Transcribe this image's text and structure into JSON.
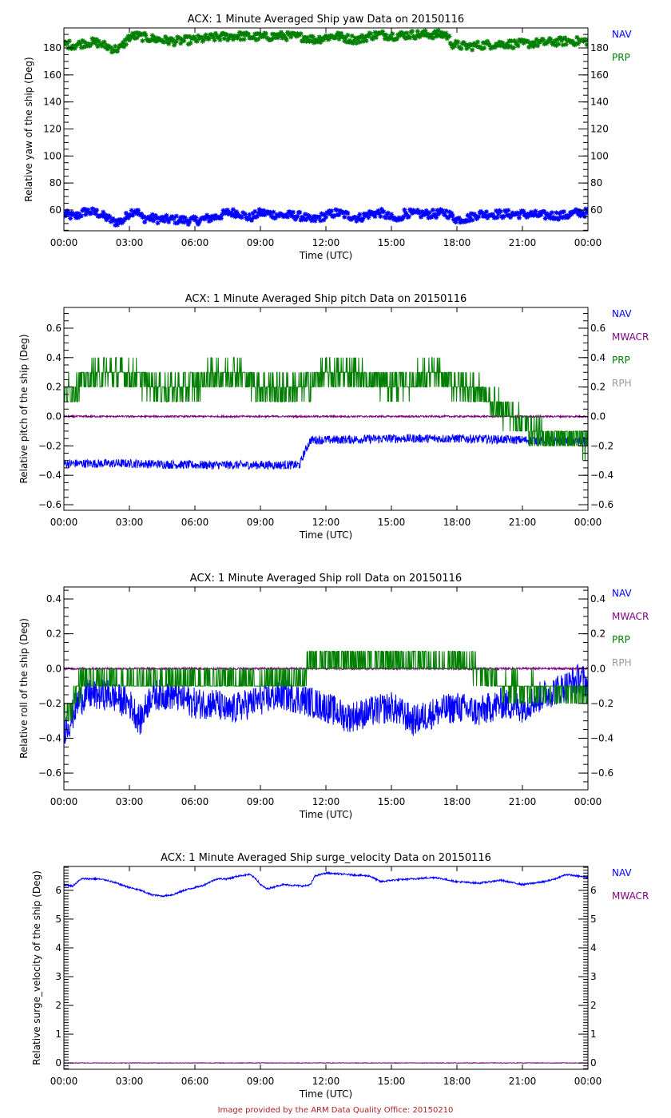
{
  "footer": "Image provided by the ARM Data Quality Office: 20150210",
  "colors": {
    "NAV": "#0000ff",
    "MWACR": "#7f007f",
    "PRP": "#007f00",
    "RPH": "#9a9a9a",
    "axis": "#000000",
    "footer": "#b22222"
  },
  "chart_data": [
    {
      "type": "line",
      "title": "ACX: 1 Minute Averaged Ship yaw Data on 20150116",
      "xlabel": "Time (UTC)",
      "ylabel": "Relative yaw of the ship (Deg)",
      "xlim": [
        0,
        24
      ],
      "ylim": [
        44.6,
        194.8
      ],
      "x_ticks": [
        0,
        3,
        6,
        9,
        12,
        15,
        18,
        21,
        24
      ],
      "x_tick_labels": [
        "00:00",
        "03:00",
        "06:00",
        "09:00",
        "12:00",
        "15:00",
        "18:00",
        "21:00",
        "00:00"
      ],
      "y_ticks": [
        60,
        80,
        100,
        120,
        140,
        160,
        180
      ],
      "y_tick_labels": [
        "60",
        "80",
        "100",
        "120",
        "140",
        "160",
        "180"
      ],
      "y_minor_step": 5,
      "legend": [
        "NAV",
        "PRP"
      ],
      "legend_placement": "right",
      "marker": "asterisk",
      "noise": 3.0,
      "series": [
        {
          "name": "NAV",
          "x": [
            0,
            0.5,
            1,
            1.5,
            2,
            2.3,
            2.7,
            3.0,
            3.3,
            3.6,
            4,
            4.4,
            5,
            6,
            7,
            7.5,
            8,
            8.5,
            9,
            9.5,
            10,
            10.5,
            11,
            11.3,
            12,
            12.5,
            13,
            13.5,
            14,
            14.5,
            15,
            15.3,
            15.6,
            16,
            16.5,
            17,
            17.5,
            18,
            18.5,
            19,
            20,
            21,
            22,
            23,
            23.5,
            24
          ],
          "y": [
            57,
            55,
            59,
            58,
            54,
            51,
            52,
            58,
            60,
            54,
            54,
            53,
            53,
            52,
            55,
            58,
            58,
            54,
            58,
            57,
            56,
            56,
            55,
            52,
            56,
            58,
            56,
            54,
            57,
            58,
            54,
            52,
            58,
            57,
            57,
            57,
            58,
            53,
            54,
            57,
            57,
            57,
            56,
            56,
            58,
            58
          ]
        },
        {
          "name": "PRP",
          "x": [
            0,
            0.5,
            1,
            1.5,
            2,
            2.3,
            2.6,
            3.0,
            3.3,
            4,
            4.5,
            5,
            6,
            7,
            8,
            9,
            10,
            11,
            11.5,
            12,
            12.5,
            13,
            13.5,
            14,
            14.5,
            15,
            16,
            17,
            17.5,
            17.8,
            18,
            18.5,
            19,
            20,
            21,
            22,
            23,
            23.5,
            24
          ],
          "y": [
            183,
            182,
            184,
            184,
            181,
            179,
            180,
            188,
            189,
            187,
            186,
            185,
            186,
            188,
            189,
            188,
            189,
            188,
            186,
            188,
            189,
            187,
            186,
            189,
            190,
            189,
            190,
            190,
            190,
            183,
            182,
            181,
            182,
            183,
            183,
            184,
            185,
            185,
            185
          ]
        }
      ]
    },
    {
      "type": "line",
      "title": "ACX: 1 Minute Averaged Ship pitch Data on 20150116",
      "xlabel": "Time (UTC)",
      "ylabel": "Relative pitch of the ship (Deg)",
      "xlim": [
        0,
        24
      ],
      "ylim": [
        -0.638,
        0.741
      ],
      "x_ticks": [
        0,
        3,
        6,
        9,
        12,
        15,
        18,
        21,
        24
      ],
      "x_tick_labels": [
        "00:00",
        "03:00",
        "06:00",
        "09:00",
        "12:00",
        "15:00",
        "18:00",
        "21:00",
        "00:00"
      ],
      "y_ticks": [
        -0.6,
        -0.4,
        -0.2,
        0.0,
        0.2,
        0.4,
        0.6
      ],
      "y_tick_labels": [
        "-0.6",
        "-0.4",
        "-0.2",
        "0.0",
        "0.2",
        "0.4",
        "0.6"
      ],
      "y_minor_step": 0.05,
      "legend": [
        "NAV",
        "MWACR",
        "PRP",
        "RPH"
      ],
      "legend_placement": "right",
      "marker": "line",
      "series": [
        {
          "name": "NAV",
          "x": [
            0,
            3,
            6,
            9,
            10.8,
            11.0,
            11.3,
            12,
            15,
            18,
            21,
            24
          ],
          "y": [
            -0.32,
            -0.32,
            -0.33,
            -0.33,
            -0.33,
            -0.25,
            -0.16,
            -0.16,
            -0.15,
            -0.15,
            -0.16,
            -0.17
          ],
          "noise": 0.03
        },
        {
          "name": "MWACR",
          "x": [
            0,
            24
          ],
          "y": [
            0.0,
            0.0
          ],
          "noise": 0.006
        },
        {
          "name": "PRP",
          "x": [
            0,
            1,
            2,
            3,
            4,
            5,
            6,
            7,
            8,
            9,
            10,
            11,
            12,
            13,
            14,
            15,
            16,
            17,
            18,
            19,
            19.5,
            20,
            21,
            22,
            23,
            24
          ],
          "y": [
            0.15,
            0.25,
            0.3,
            0.28,
            0.22,
            0.18,
            0.22,
            0.28,
            0.3,
            0.2,
            0.18,
            0.2,
            0.28,
            0.3,
            0.25,
            0.22,
            0.25,
            0.28,
            0.22,
            0.18,
            0.1,
            0.05,
            -0.05,
            -0.15,
            -0.15,
            -0.18
          ],
          "noise": 0.1
        },
        {
          "name": "RPH",
          "x": [],
          "y": []
        }
      ]
    },
    {
      "type": "line",
      "title": "ACX: 1 Minute Averaged Ship roll Data on 20150116",
      "xlabel": "Time (UTC)",
      "ylabel": "Relative roll of the ship (Deg)",
      "xlim": [
        0,
        24
      ],
      "ylim": [
        -0.696,
        0.469
      ],
      "x_ticks": [
        0,
        3,
        6,
        9,
        12,
        15,
        18,
        21,
        24
      ],
      "x_tick_labels": [
        "00:00",
        "03:00",
        "06:00",
        "09:00",
        "12:00",
        "15:00",
        "18:00",
        "21:00",
        "00:00"
      ],
      "y_ticks": [
        -0.6,
        -0.4,
        -0.2,
        0.0,
        0.2,
        0.4
      ],
      "y_tick_labels": [
        "-0.6",
        "-0.4",
        "-0.2",
        "0.0",
        "0.2",
        "0.4"
      ],
      "y_minor_step": 0.05,
      "legend": [
        "NAV",
        "MWACR",
        "PRP",
        "RPH"
      ],
      "legend_placement": "right",
      "marker": "line",
      "series": [
        {
          "name": "NAV",
          "x": [
            0,
            0.3,
            0.6,
            1,
            2,
            3,
            3.5,
            4,
            5,
            6,
            7,
            7.5,
            8,
            9,
            10,
            11,
            12,
            13,
            14,
            15,
            16,
            17,
            18,
            19,
            20,
            21,
            22,
            23,
            23.7,
            24
          ],
          "y": [
            -0.35,
            -0.3,
            -0.2,
            -0.15,
            -0.15,
            -0.2,
            -0.3,
            -0.15,
            -0.15,
            -0.2,
            -0.2,
            -0.25,
            -0.22,
            -0.18,
            -0.15,
            -0.18,
            -0.22,
            -0.28,
            -0.25,
            -0.22,
            -0.3,
            -0.25,
            -0.22,
            -0.25,
            -0.2,
            -0.22,
            -0.15,
            -0.1,
            -0.05,
            -0.1
          ],
          "noise": 0.09
        },
        {
          "name": "MWACR",
          "x": [
            0,
            24
          ],
          "y": [
            0.0,
            0.0
          ],
          "noise": 0.006
        },
        {
          "name": "PRP",
          "x": [
            0,
            0.3,
            0.6,
            1,
            3,
            5,
            7,
            9,
            11,
            11.2,
            12,
            14,
            16,
            17,
            18,
            19,
            19.5,
            20,
            22,
            24
          ],
          "y": [
            -0.25,
            -0.25,
            -0.1,
            -0.08,
            -0.08,
            -0.07,
            -0.07,
            -0.08,
            -0.08,
            0.03,
            0.04,
            0.04,
            0.04,
            0.03,
            0.02,
            0.0,
            -0.06,
            -0.1,
            -0.12,
            -0.12
          ],
          "noise": 0.07
        },
        {
          "name": "RPH",
          "x": [],
          "y": []
        }
      ]
    },
    {
      "type": "line",
      "title": "ACX: 1 Minute Averaged Ship surge_velocity Data on 20150116",
      "xlabel": "Time (UTC)",
      "ylabel": "Relative surge_velocity of the ship (Deg)",
      "xlim": [
        0,
        24
      ],
      "ylim": [
        -0.22,
        6.83
      ],
      "x_ticks": [
        0,
        3,
        6,
        9,
        12,
        15,
        18,
        21,
        24
      ],
      "x_tick_labels": [
        "00:00",
        "03:00",
        "06:00",
        "09:00",
        "12:00",
        "15:00",
        "18:00",
        "21:00",
        "00:00"
      ],
      "y_ticks": [
        0,
        1,
        2,
        3,
        4,
        5,
        6
      ],
      "y_tick_labels": [
        "0",
        "1",
        "2",
        "3",
        "4",
        "5",
        "6"
      ],
      "y_minor_step": 0.1,
      "legend": [
        "NAV",
        "MWACR"
      ],
      "legend_placement": "right",
      "marker": "line",
      "series": [
        {
          "name": "NAV",
          "x": [
            0,
            0.4,
            0.8,
            1.5,
            2,
            3,
            3.5,
            4,
            4.5,
            5,
            5.5,
            6,
            6.3,
            7,
            7.5,
            8,
            8.5,
            8.8,
            9,
            9.3,
            10,
            11,
            11.3,
            11.5,
            12,
            13,
            14,
            14.5,
            15,
            16,
            17,
            18,
            19,
            20,
            21,
            22,
            22.5,
            23,
            23.5,
            24
          ],
          "y": [
            6.2,
            6.15,
            6.4,
            6.4,
            6.35,
            6.1,
            6.0,
            5.85,
            5.8,
            5.85,
            6.0,
            6.1,
            6.15,
            6.4,
            6.4,
            6.5,
            6.55,
            6.4,
            6.2,
            6.05,
            6.2,
            6.15,
            6.2,
            6.5,
            6.6,
            6.55,
            6.5,
            6.3,
            6.35,
            6.4,
            6.45,
            6.3,
            6.25,
            6.35,
            6.2,
            6.3,
            6.4,
            6.55,
            6.5,
            6.45
          ],
          "noise": 0.03
        },
        {
          "name": "MWACR",
          "x": [
            0,
            24
          ],
          "y": [
            0.0,
            0.0
          ],
          "noise": 0.01
        }
      ]
    }
  ]
}
